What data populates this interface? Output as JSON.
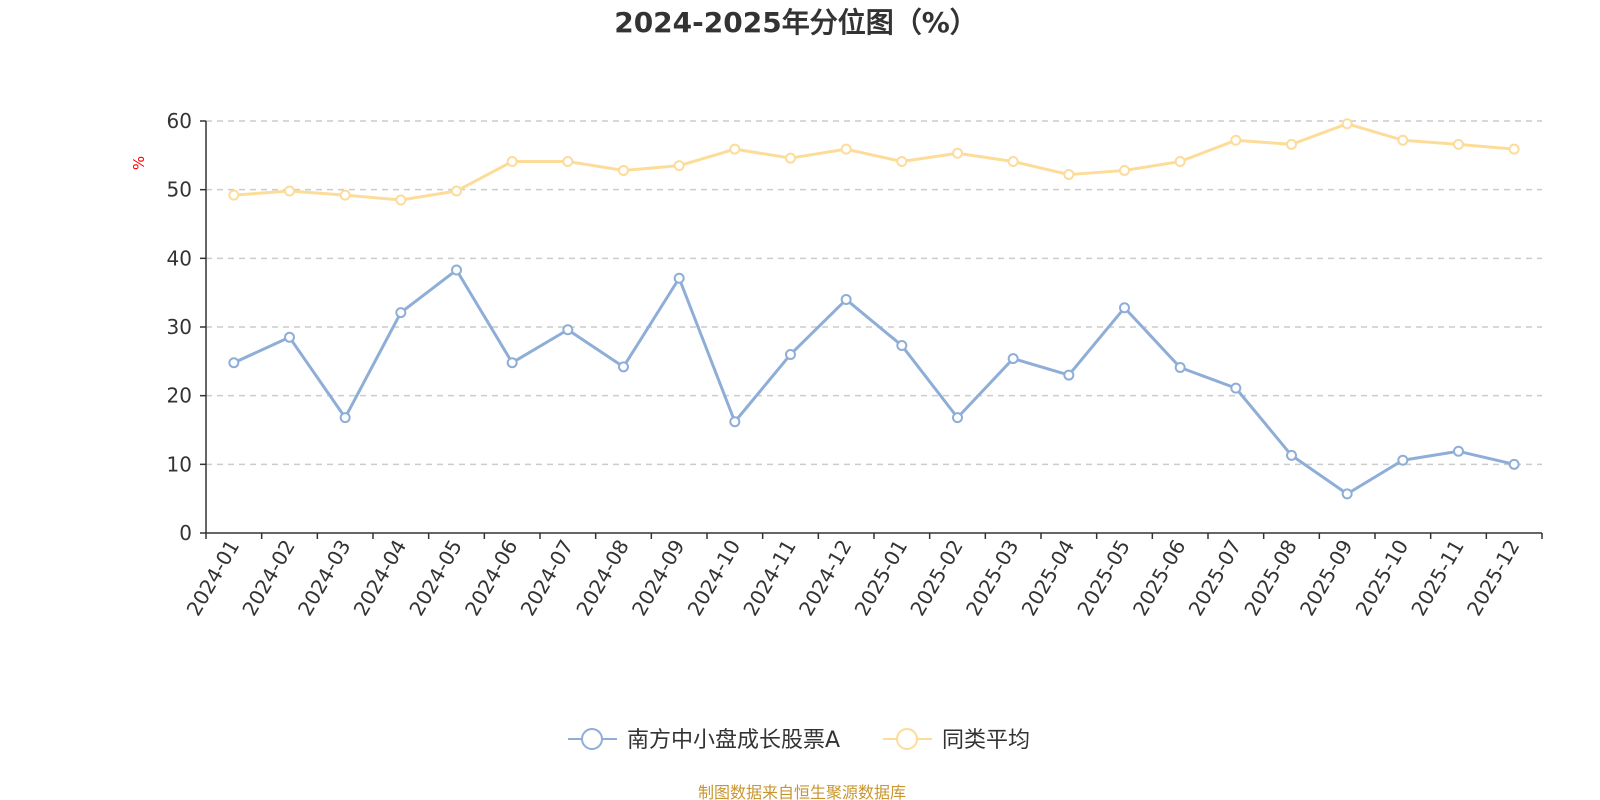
{
  "title": "2024-2025年分位图（%）",
  "source": "制图数据来自恒生聚源数据库",
  "colors": {
    "series1": "#8eaed8",
    "series2": "#fddc9a",
    "axis": "#333333",
    "grid": "#cccccc",
    "unit": "#ff0000",
    "source": "#c8962e"
  },
  "chart_data": {
    "type": "line",
    "title": "2024-2025年分位图（%）",
    "ylabel": "%",
    "xlabel": "",
    "ylim": [
      0,
      60
    ],
    "yticks": [
      0,
      10,
      20,
      30,
      40,
      50,
      60
    ],
    "grid": "horizontal-dashed",
    "legend_position": "bottom-center",
    "categories": [
      "2024-01",
      "2024-02",
      "2024-03",
      "2024-04",
      "2024-05",
      "2024-06",
      "2024-07",
      "2024-08",
      "2024-09",
      "2024-10",
      "2024-11",
      "2024-12",
      "2025-01",
      "2025-02",
      "2025-03",
      "2025-04",
      "2025-05",
      "2025-06",
      "2025-07",
      "2025-08",
      "2025-09",
      "2025-10",
      "2025-11",
      "2025-12"
    ],
    "series": [
      {
        "name": "南方中小盘成长股票A",
        "values": [
          24.8,
          28.5,
          16.8,
          32.1,
          38.3,
          24.8,
          29.6,
          24.2,
          37.1,
          16.2,
          26.0,
          34.0,
          27.3,
          16.8,
          25.4,
          23.0,
          32.8,
          24.1,
          21.1,
          11.3,
          5.7,
          10.6,
          11.9,
          10.0
        ]
      },
      {
        "name": "同类平均",
        "values": [
          49.2,
          49.8,
          49.2,
          48.5,
          49.8,
          54.1,
          54.1,
          52.8,
          53.5,
          55.9,
          54.6,
          55.9,
          54.1,
          55.3,
          54.1,
          52.2,
          52.8,
          54.1,
          57.2,
          56.6,
          59.6,
          57.2,
          56.6,
          55.9
        ]
      }
    ]
  }
}
